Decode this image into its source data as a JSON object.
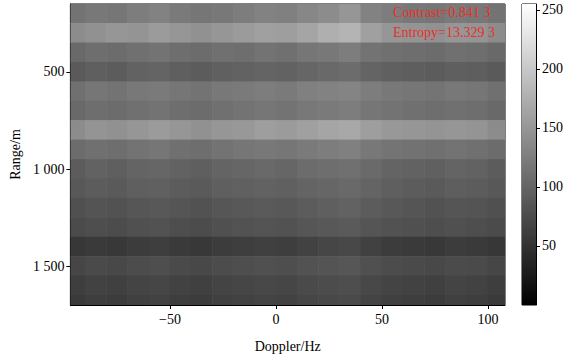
{
  "chart_data": {
    "type": "heatmap",
    "x_label": "Doppler/Hz",
    "y_label": "Range/m",
    "annotations": [
      "Contrast=0.841 3",
      "Entropy=13.329 3"
    ],
    "xlim": [
      -97,
      108
    ],
    "xticks": [
      {
        "value": -50,
        "label": "−50"
      },
      0,
      50,
      100
    ],
    "ylim": [
      150,
      1700
    ],
    "yticks": [
      500,
      {
        "value": 1000,
        "label": "1 000"
      },
      {
        "value": 1500,
        "label": "1 500"
      }
    ],
    "colorbar": {
      "range": [
        0,
        255
      ],
      "ticks": [
        50,
        100,
        150,
        200,
        250
      ]
    },
    "x": [
      -95,
      -85,
      -75,
      -65,
      -55,
      -45,
      -35,
      -25,
      -15,
      -5,
      5,
      15,
      25,
      35,
      45,
      55,
      65,
      75,
      85,
      95,
      105
    ],
    "y": [
      200,
      300,
      400,
      500,
      600,
      700,
      800,
      900,
      1000,
      1100,
      1200,
      1300,
      1400,
      1500,
      1600,
      1700
    ],
    "cells": [
      [
        115,
        120,
        118,
        125,
        130,
        122,
        118,
        120,
        125,
        130,
        128,
        135,
        140,
        150,
        130,
        125,
        120,
        118,
        122,
        120,
        115
      ],
      [
        140,
        145,
        150,
        148,
        155,
        150,
        145,
        150,
        155,
        160,
        158,
        165,
        175,
        180,
        160,
        150,
        148,
        145,
        150,
        148,
        140
      ],
      [
        105,
        110,
        108,
        112,
        115,
        110,
        108,
        112,
        110,
        115,
        112,
        118,
        120,
        125,
        115,
        112,
        110,
        108,
        112,
        110,
        105
      ],
      [
        90,
        95,
        92,
        98,
        100,
        95,
        92,
        96,
        98,
        100,
        98,
        102,
        105,
        108,
        100,
        96,
        94,
        92,
        95,
        94,
        90
      ],
      [
        112,
        118,
        115,
        120,
        122,
        118,
        115,
        120,
        122,
        125,
        122,
        128,
        130,
        132,
        125,
        120,
        118,
        116,
        120,
        118,
        112
      ],
      [
        105,
        110,
        108,
        112,
        115,
        110,
        108,
        112,
        115,
        118,
        115,
        120,
        122,
        125,
        118,
        115,
        112,
        110,
        112,
        110,
        105
      ],
      [
        140,
        148,
        145,
        150,
        155,
        150,
        145,
        150,
        152,
        158,
        155,
        160,
        165,
        168,
        158,
        152,
        150,
        148,
        150,
        148,
        140
      ],
      [
        108,
        112,
        110,
        115,
        118,
        112,
        110,
        115,
        118,
        120,
        118,
        122,
        125,
        128,
        120,
        116,
        114,
        112,
        115,
        112,
        108
      ],
      [
        92,
        98,
        95,
        100,
        102,
        98,
        95,
        100,
        102,
        105,
        102,
        108,
        110,
        112,
        106,
        100,
        98,
        96,
        100,
        98,
        92
      ],
      [
        88,
        92,
        90,
        95,
        96,
        92,
        90,
        95,
        96,
        98,
        96,
        100,
        102,
        105,
        100,
        95,
        92,
        90,
        94,
        92,
        88
      ],
      [
        80,
        84,
        82,
        86,
        88,
        85,
        82,
        86,
        88,
        90,
        88,
        92,
        95,
        98,
        92,
        88,
        85,
        82,
        85,
        84,
        80
      ],
      [
        75,
        78,
        76,
        80,
        82,
        78,
        76,
        80,
        82,
        84,
        82,
        86,
        88,
        90,
        85,
        82,
        80,
        78,
        80,
        78,
        75
      ],
      [
        55,
        58,
        56,
        60,
        62,
        58,
        56,
        60,
        62,
        64,
        62,
        66,
        70,
        72,
        65,
        60,
        58,
        56,
        60,
        58,
        55
      ],
      [
        70,
        74,
        72,
        76,
        78,
        74,
        72,
        76,
        78,
        80,
        78,
        82,
        84,
        86,
        80,
        76,
        74,
        72,
        75,
        74,
        70
      ],
      [
        62,
        66,
        64,
        68,
        70,
        66,
        64,
        68,
        70,
        72,
        70,
        74,
        76,
        78,
        72,
        68,
        66,
        64,
        68,
        66,
        62
      ],
      [
        58,
        62,
        60,
        64,
        66,
        62,
        60,
        64,
        66,
        68,
        66,
        70,
        72,
        74,
        68,
        64,
        62,
        60,
        64,
        62,
        58
      ]
    ]
  }
}
